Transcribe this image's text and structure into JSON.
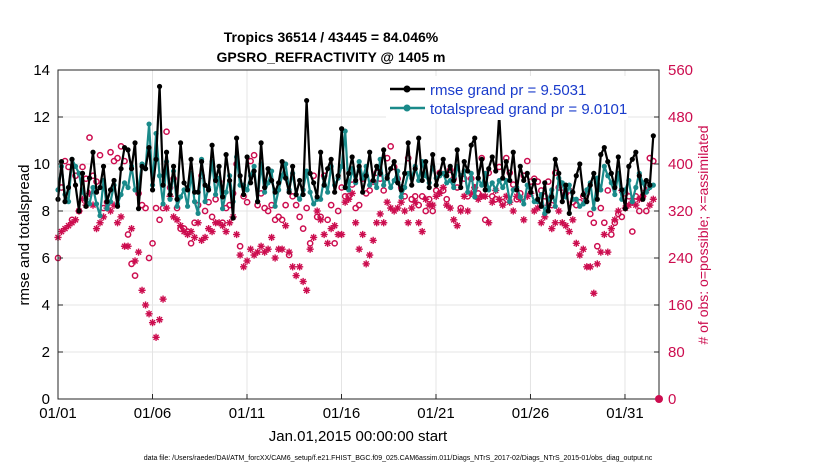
{
  "chart_data": {
    "type": "line",
    "title": "Tropics 36514 / 43445 = 84.046%",
    "subtitle": "GPSRO_REFRACTIVITY @ 1405 m",
    "xlabel": "Jan.01,2015 00:00:00 start",
    "ylabel": "rmse and totalspread",
    "ylabel_right": "# of obs: o=possible; ×=assimilated",
    "xlim": [
      0,
      31.8
    ],
    "ylim": [
      0,
      14
    ],
    "ylim_right": [
      0,
      560
    ],
    "x_tick_labels": [
      "01/01",
      "01/06",
      "01/11",
      "01/16",
      "01/21",
      "01/26",
      "01/31"
    ],
    "y_tick_labels": [
      "0",
      "2",
      "4",
      "6",
      "8",
      "10",
      "12",
      "14"
    ],
    "y_right_tick_labels": [
      "0",
      "80",
      "160",
      "240",
      "320",
      "400",
      "480",
      "560"
    ],
    "footnote": "data file: /Users/raeder/DAI/ATM_forcXX/CAM6_setup/f.e21.FHIST_BGC.f09_025.CAM6assim.011/Diags_NTrS_2017-02/Diags_NTrS_2015-01/obs_diag_output.nc",
    "colors": {
      "rmse": "#000000",
      "spread": "#1a8a8a",
      "obs": "#cc0d4f",
      "legend_text": "#1a3ccc"
    },
    "series": [
      {
        "name": "rmse grand pr = 9.5031",
        "marker": "filled-circle",
        "values": [
          8.5,
          10.1,
          8.4,
          9.0,
          10.2,
          9.1,
          8.0,
          9.6,
          8.2,
          9.4,
          10.5,
          8.8,
          9.0,
          9.9,
          8.4,
          8.9,
          9.3,
          8.2,
          9.8,
          10.7,
          10.6,
          9.8,
          10.9,
          8.1,
          9.9,
          9.8,
          10.7,
          8.9,
          10.2,
          13.3,
          9.1,
          10.5,
          8.7,
          9.9,
          8.5,
          10.9,
          9.2,
          8.9,
          10.2,
          8.8,
          8.8,
          10.1,
          9.1,
          8.9,
          10.8,
          9.3,
          9.9,
          8.6,
          10.4,
          9.3,
          7.7,
          11.1,
          9.5,
          8.7,
          10.3,
          9.2,
          9.7,
          8.4,
          10.9,
          9.0,
          9.8,
          9.3,
          8.8,
          9.2,
          10.1,
          9.4,
          8.8,
          9.9,
          8.7,
          9.3,
          8.7,
          12.7,
          9.6,
          9.2,
          8.6,
          10.5,
          9.1,
          9.8,
          10.2,
          8.8,
          9.5,
          11.5,
          9.0,
          9.6,
          10.3,
          9.3,
          9.9,
          8.8,
          9.5,
          10.5,
          9.3,
          9.9,
          9.6,
          10.6,
          9.4,
          9.8,
          10.1,
          9.2,
          8.9,
          9.6,
          10.9,
          9.1,
          9.8,
          11.1,
          9.3,
          10.1,
          9.0,
          10.4,
          9.1,
          9.6,
          10.2,
          9.5,
          9.9,
          9.3,
          10.6,
          9.0,
          10.1,
          9.7,
          10.8,
          11.1,
          9.4,
          10.2,
          8.9,
          9.8,
          10.3,
          9.7,
          12.1,
          9.4,
          10.1,
          9.3,
          10.5,
          8.9,
          9.9,
          9.3,
          9.6,
          8.8,
          9.3,
          8.5,
          8.2,
          9.2,
          8.0,
          8.6,
          10.2,
          9.6,
          8.4,
          9.1,
          7.9,
          8.8,
          9.5,
          10.0,
          8.7,
          8.4,
          9.1,
          9.6,
          8.5,
          10.4,
          10.7,
          10.1,
          9.6,
          9.0,
          10.3,
          8.9,
          8.1,
          9.9,
          10.2,
          10.5,
          9.5,
          8.5,
          9.3,
          9.1,
          11.2
        ]
      },
      {
        "name": "totalspread grand pr = 9.0101",
        "marker": "filled-circle",
        "values": [
          8.9,
          9.9,
          8.7,
          8.4,
          10.2,
          9.9,
          9.6,
          8.8,
          8.5,
          8.3,
          9.0,
          8.3,
          7.8,
          9.3,
          8.1,
          8.4,
          9.1,
          8.3,
          8.7,
          9.2,
          9.0,
          9.9,
          8.9,
          9.0,
          10.0,
          9.8,
          11.7,
          9.1,
          11.3,
          9.5,
          8.3,
          10.1,
          8.5,
          9.7,
          8.2,
          8.6,
          8.9,
          8.2,
          9.6,
          8.4,
          7.9,
          10.2,
          8.4,
          9.0,
          10.1,
          8.7,
          9.4,
          8.1,
          8.8,
          9.5,
          8.4,
          10.3,
          9.1,
          9.1,
          8.9,
          9.5,
          9.9,
          8.4,
          10.0,
          8.8,
          9.2,
          9.7,
          8.2,
          8.9,
          9.5,
          10.0,
          8.9,
          9.6,
          8.7,
          8.5,
          8.9,
          9.7,
          8.8,
          8.3,
          8.5,
          8.5,
          9.4,
          8.8,
          9.9,
          9.1,
          9.4,
          9.9,
          11.4,
          8.9,
          9.8,
          9.2,
          10.1,
          9.4,
          9.9,
          9.1,
          9.3,
          9.0,
          10.2,
          9.1,
          9.5,
          9.0,
          9.3,
          9.7,
          8.6,
          9.0,
          9.6,
          9.4,
          9.9,
          9.3,
          10.1,
          9.5,
          9.2,
          9.9,
          9.4,
          9.5,
          9.6,
          9.2,
          9.3,
          9.0,
          9.9,
          9.5,
          9.7,
          8.8,
          9.6,
          8.6,
          9.4,
          9.1,
          9.6,
          8.9,
          9.2,
          8.9,
          9.3,
          9.0,
          9.3,
          8.4,
          8.9,
          9.0,
          8.6,
          8.3,
          9.1,
          8.8,
          8.4,
          8.4,
          8.7,
          7.9,
          8.5,
          8.9,
          8.2,
          9.4,
          9.2,
          8.6,
          9.1,
          8.5,
          8.5,
          8.2,
          8.3,
          8.9,
          9.2,
          8.1,
          9.4,
          8.9,
          9.9,
          9.5,
          9.2,
          8.7,
          9.6,
          8.5,
          8.9,
          9.3,
          8.4,
          9.0,
          9.6,
          9.2,
          8.8,
          9.0,
          9.1
        ]
      },
      {
        "name": "possible",
        "marker": "open-circle",
        "axis": "right",
        "values": [
          240,
          360,
          405,
          395,
          305,
          380,
          320,
          395,
          375,
          445,
          380,
          370,
          415,
          325,
          335,
          420,
          405,
          410,
          430,
          405,
          280,
          230,
          210,
          350,
          330,
          325,
          240,
          265,
          325,
          305,
          325,
          455,
          360,
          375,
          325,
          290,
          290,
          285,
          265,
          300,
          330,
          380,
          320,
          335,
          310,
          340,
          370,
          300,
          325,
          330,
          350,
          400,
          260,
          345,
          335,
          405,
          415,
          330,
          350,
          325,
          320,
          330,
          305,
          310,
          305,
          330,
          245,
          345,
          330,
          310,
          290,
          325,
          265,
          380,
          310,
          310,
          380,
          305,
          330,
          265,
          320,
          360,
          345,
          345,
          365,
          325,
          330,
          375,
          350,
          355,
          370,
          385,
          375,
          355,
          410,
          430,
          395,
          375,
          360,
          345,
          410,
          340,
          345,
          330,
          345,
          320,
          340,
          320,
          355,
          385,
          355,
          340,
          390,
          375,
          360,
          325,
          375,
          345,
          375,
          360,
          350,
          410,
          305,
          385,
          345,
          340,
          395,
          335,
          410,
          385,
          365,
          340,
          350,
          380,
          405,
          370,
          375,
          370,
          355,
          345,
          370,
          330,
          385,
          360,
          360,
          350,
          355,
          335,
          330,
          335,
          345,
          350,
          315,
          300,
          260,
          325,
          300,
          355,
          280,
          300,
          315,
          310,
          350,
          345,
          285,
          345,
          320,
          345,
          320,
          410,
          405
        ]
      },
      {
        "name": "assimilated",
        "marker": "asterisk",
        "axis": "right",
        "values": [
          275,
          285,
          290,
          295,
          300,
          305,
          320,
          340,
          330,
          350,
          330,
          290,
          300,
          310,
          325,
          320,
          330,
          300,
          310,
          260,
          260,
          290,
          235,
          250,
          185,
          160,
          145,
          130,
          105,
          135,
          170,
          325,
          345,
          310,
          305,
          295,
          285,
          280,
          285,
          275,
          300,
          270,
          275,
          290,
          285,
          300,
          300,
          295,
          285,
          300,
          310,
          280,
          245,
          225,
          235,
          255,
          245,
          250,
          260,
          250,
          255,
          275,
          240,
          255,
          255,
          295,
          250,
          225,
          210,
          225,
          200,
          185,
          255,
          275,
          320,
          305,
          280,
          265,
          290,
          295,
          280,
          280,
          335,
          340,
          350,
          300,
          255,
          280,
          230,
          245,
          270,
          300,
          315,
          300,
          335,
          325,
          320,
          325,
          335,
          320,
          300,
          325,
          335,
          300,
          285,
          340,
          330,
          330,
          345,
          350,
          360,
          330,
          325,
          305,
          295,
          320,
          345,
          320,
          350,
          360,
          340,
          345,
          345,
          300,
          335,
          355,
          340,
          330,
          345,
          335,
          320,
          345,
          340,
          305,
          345,
          350,
          320,
          325,
          300,
          310,
          330,
          290,
          300,
          320,
          300,
          295,
          285,
          305,
          265,
          245,
          255,
          225,
          225,
          180,
          230,
          250,
          280,
          250,
          290,
          305,
          320,
          355,
          325,
          330,
          335,
          330,
          340,
          345,
          355,
          330,
          340
        ]
      }
    ]
  }
}
